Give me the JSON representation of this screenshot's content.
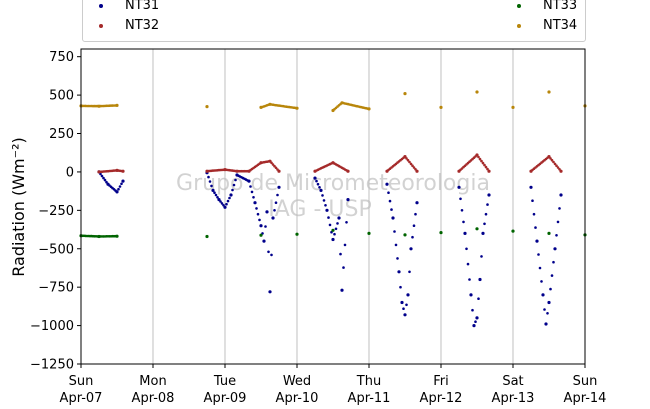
{
  "chart_data": {
    "type": "scatter",
    "title": "",
    "xlabel": "",
    "ylabel": "Radiation (Wm⁻²)",
    "ylim": [
      -1250,
      800
    ],
    "yticks": [
      750,
      500,
      250,
      0,
      -250,
      -500,
      -750,
      -1000,
      -1250
    ],
    "xlim": [
      "2024-04-07",
      "2024-04-14"
    ],
    "xticks": [
      {
        "day": "Sun",
        "date": "Apr-07"
      },
      {
        "day": "Mon",
        "date": "Apr-08"
      },
      {
        "day": "Tue",
        "date": "Apr-09"
      },
      {
        "day": "Wed",
        "date": "Apr-10"
      },
      {
        "day": "Thu",
        "date": "Apr-11"
      },
      {
        "day": "Fri",
        "date": "Apr-12"
      },
      {
        "day": "Sat",
        "date": "Apr-13"
      },
      {
        "day": "Sun",
        "date": "Apr-14"
      }
    ],
    "grid": "vertical",
    "legend": "top",
    "watermark": [
      "Grupo de Micrometeorologia",
      "IAG - USP"
    ],
    "series": [
      {
        "name": "NT31",
        "color": "#00008b",
        "points": [
          [
            "2024-04-07 06:00",
            0
          ],
          [
            "2024-04-07 09:00",
            -80
          ],
          [
            "2024-04-07 12:00",
            -130
          ],
          [
            "2024-04-07 14:00",
            -60
          ],
          [
            "2024-04-08 18:00",
            -5
          ],
          [
            "2024-04-08 20:00",
            -120
          ],
          [
            "2024-04-08 22:00",
            -180
          ],
          [
            "2024-04-09 00:00",
            -230
          ],
          [
            "2024-04-09 02:00",
            -150
          ],
          [
            "2024-04-09 04:00",
            -20
          ],
          [
            "2024-04-09 08:00",
            -60
          ],
          [
            "2024-04-09 10:00",
            -200
          ],
          [
            "2024-04-09 12:00",
            -350
          ],
          [
            "2024-04-09 13:00",
            -450
          ],
          [
            "2024-04-09 14:00",
            -260
          ],
          [
            "2024-04-09 15:00",
            -780
          ],
          [
            "2024-04-09 16:00",
            -300
          ],
          [
            "2024-04-09 18:00",
            -100
          ],
          [
            "2024-04-10 06:00",
            -40
          ],
          [
            "2024-04-10 08:00",
            -120
          ],
          [
            "2024-04-10 10:00",
            -250
          ],
          [
            "2024-04-10 12:00",
            -440
          ],
          [
            "2024-04-10 14:00",
            -300
          ],
          [
            "2024-04-10 15:00",
            -770
          ],
          [
            "2024-04-10 17:00",
            -180
          ],
          [
            "2024-04-11 06:00",
            -80
          ],
          [
            "2024-04-11 08:00",
            -300
          ],
          [
            "2024-04-11 10:00",
            -650
          ],
          [
            "2024-04-11 11:00",
            -850
          ],
          [
            "2024-04-11 12:00",
            -930
          ],
          [
            "2024-04-11 13:00",
            -800
          ],
          [
            "2024-04-11 14:00",
            -500
          ],
          [
            "2024-04-11 16:00",
            -200
          ],
          [
            "2024-04-12 06:00",
            -100
          ],
          [
            "2024-04-12 08:00",
            -400
          ],
          [
            "2024-04-12 10:00",
            -800
          ],
          [
            "2024-04-12 11:00",
            -1000
          ],
          [
            "2024-04-12 12:00",
            -950
          ],
          [
            "2024-04-12 13:00",
            -700
          ],
          [
            "2024-04-12 14:00",
            -400
          ],
          [
            "2024-04-12 16:00",
            -150
          ],
          [
            "2024-04-13 06:00",
            -100
          ],
          [
            "2024-04-13 08:00",
            -450
          ],
          [
            "2024-04-13 10:00",
            -800
          ],
          [
            "2024-04-13 11:00",
            -990
          ],
          [
            "2024-04-13 12:00",
            -850
          ],
          [
            "2024-04-13 14:00",
            -500
          ],
          [
            "2024-04-13 16:00",
            -150
          ]
        ]
      },
      {
        "name": "NT32",
        "color": "#a52a2a",
        "points": [
          [
            "2024-04-07 06:00",
            0
          ],
          [
            "2024-04-07 12:00",
            10
          ],
          [
            "2024-04-07 14:00",
            5
          ],
          [
            "2024-04-08 18:00",
            5
          ],
          [
            "2024-04-09 00:00",
            15
          ],
          [
            "2024-04-09 04:00",
            5
          ],
          [
            "2024-04-09 08:00",
            5
          ],
          [
            "2024-04-09 12:00",
            60
          ],
          [
            "2024-04-09 15:00",
            70
          ],
          [
            "2024-04-09 18:00",
            5
          ],
          [
            "2024-04-10 06:00",
            5
          ],
          [
            "2024-04-10 12:00",
            60
          ],
          [
            "2024-04-10 17:00",
            5
          ],
          [
            "2024-04-11 06:00",
            5
          ],
          [
            "2024-04-11 12:00",
            100
          ],
          [
            "2024-04-11 16:00",
            5
          ],
          [
            "2024-04-12 06:00",
            5
          ],
          [
            "2024-04-12 12:00",
            110
          ],
          [
            "2024-04-12 16:00",
            5
          ],
          [
            "2024-04-13 06:00",
            5
          ],
          [
            "2024-04-13 12:00",
            100
          ],
          [
            "2024-04-13 16:00",
            5
          ]
        ]
      },
      {
        "name": "NT33",
        "color": "#006400",
        "points": [
          [
            "2024-04-07 00:00",
            -415
          ],
          [
            "2024-04-07 06:00",
            -420
          ],
          [
            "2024-04-07 12:00",
            -418
          ],
          [
            "2024-04-08 18:00",
            -420
          ],
          [
            "2024-04-09 12:00",
            -412
          ],
          [
            "2024-04-10 00:00",
            -405
          ],
          [
            "2024-04-10 12:00",
            -380
          ],
          [
            "2024-04-11 00:00",
            -400
          ],
          [
            "2024-04-11 12:00",
            -410
          ],
          [
            "2024-04-12 00:00",
            -395
          ],
          [
            "2024-04-12 12:00",
            -370
          ],
          [
            "2024-04-13 00:00",
            -385
          ],
          [
            "2024-04-13 12:00",
            -400
          ],
          [
            "2024-04-14 00:00",
            -410
          ]
        ]
      },
      {
        "name": "NT34",
        "color": "#b8860b",
        "points": [
          [
            "2024-04-07 00:00",
            430
          ],
          [
            "2024-04-07 06:00",
            428
          ],
          [
            "2024-04-07 12:00",
            433
          ],
          [
            "2024-04-08 18:00",
            425
          ],
          [
            "2024-04-09 12:00",
            420
          ],
          [
            "2024-04-09 15:00",
            440
          ],
          [
            "2024-04-10 00:00",
            415
          ],
          [
            "2024-04-10 12:00",
            400
          ],
          [
            "2024-04-10 15:00",
            450
          ],
          [
            "2024-04-11 00:00",
            410
          ],
          [
            "2024-04-11 12:00",
            510
          ],
          [
            "2024-04-12 00:00",
            420
          ],
          [
            "2024-04-12 12:00",
            520
          ],
          [
            "2024-04-13 00:00",
            420
          ],
          [
            "2024-04-13 12:00",
            520
          ],
          [
            "2024-04-14 00:00",
            430
          ]
        ]
      }
    ]
  }
}
